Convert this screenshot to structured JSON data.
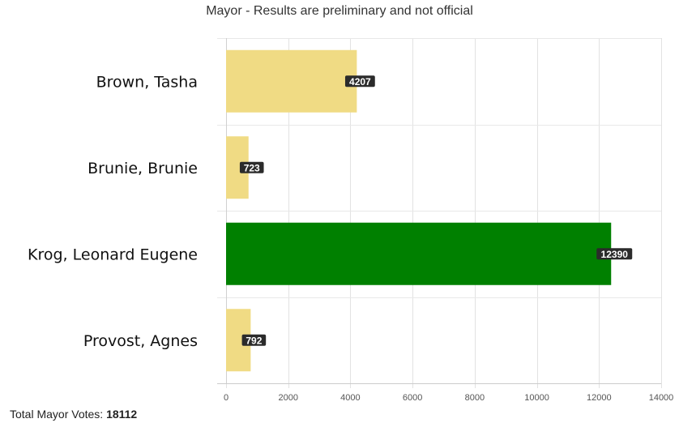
{
  "chart_data": {
    "type": "bar",
    "orientation": "horizontal",
    "title": "Mayor - Results are preliminary and not official",
    "categories": [
      "Brown, Tasha",
      "Brunie, Brunie",
      "Krog, Leonard Eugene",
      "Provost, Agnes"
    ],
    "values": [
      4207,
      723,
      12390,
      792
    ],
    "value_labels": [
      "4207",
      "723",
      "12390",
      "792"
    ],
    "bar_colors": [
      "#f0db84",
      "#f0db84",
      "#008000",
      "#f0db84"
    ],
    "xlim": [
      0,
      14000
    ],
    "x_ticks": [
      "0",
      "2000",
      "4000",
      "6000",
      "8000",
      "10000",
      "12000",
      "14000"
    ],
    "grid": true,
    "xlabel": "",
    "ylabel": ""
  },
  "footer": {
    "total_label": "Total Mayor Votes: ",
    "total_value": "18112"
  }
}
